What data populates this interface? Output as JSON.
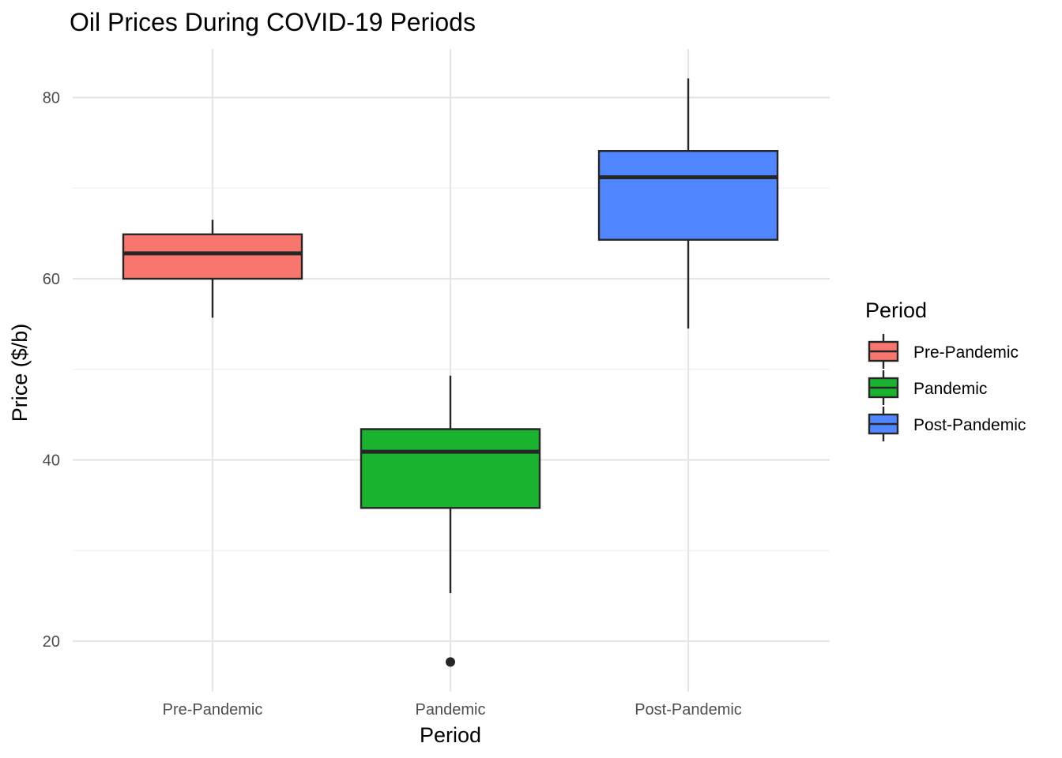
{
  "chart_data": {
    "type": "boxplot",
    "title": "Oil Prices During COVID-19 Periods",
    "xlabel": "Period",
    "ylabel": "Price ($/b)",
    "ylim": [
      15,
      85
    ],
    "yticks": [
      20,
      40,
      60,
      80
    ],
    "y_minor_ticks": [
      30,
      50,
      70
    ],
    "grid": true,
    "legend": {
      "title": "Period",
      "position": "right",
      "entries": [
        "Pre-Pandemic",
        "Pandemic",
        "Post-Pandemic"
      ]
    },
    "categories": [
      "Pre-Pandemic",
      "Pandemic",
      "Post-Pandemic"
    ],
    "series": [
      {
        "name": "Pre-Pandemic",
        "color": "#F8766D",
        "whisker_low": 55.7,
        "q1": 60.0,
        "median": 62.8,
        "q3": 64.9,
        "whisker_high": 66.5,
        "outliers": []
      },
      {
        "name": "Pandemic",
        "color": "#1AB32F",
        "whisker_low": 25.3,
        "q1": 34.7,
        "median": 40.9,
        "q3": 43.4,
        "whisker_high": 49.3,
        "outliers": [
          17.7
        ]
      },
      {
        "name": "Post-Pandemic",
        "color": "#5086FF",
        "whisker_low": 54.5,
        "q1": 64.3,
        "median": 71.2,
        "q3": 74.1,
        "whisker_high": 82.1,
        "outliers": []
      }
    ]
  }
}
